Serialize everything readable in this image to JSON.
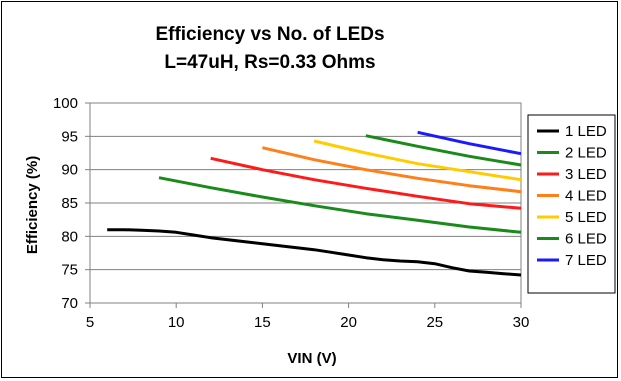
{
  "chart_data": {
    "type": "line",
    "title": "Efficiency vs No. of LEDs",
    "subtitle": "L=47uH, Rs=0.33 Ohms",
    "xlabel": "VIN (V)",
    "ylabel": "Efficiency (%)",
    "xlim": [
      5,
      30
    ],
    "ylim": [
      70,
      100
    ],
    "xticks": [
      "5",
      "10",
      "15",
      "20",
      "25",
      "30"
    ],
    "yticks": [
      "70",
      "75",
      "80",
      "85",
      "90",
      "95",
      "100"
    ],
    "grid": "horizontal",
    "legend_position": "right",
    "series": [
      {
        "name": "1 LED",
        "color": "#000000",
        "x": [
          6,
          7,
          8,
          9,
          10,
          11,
          12,
          13,
          14,
          15,
          16,
          17,
          18,
          19,
          20,
          21,
          22,
          23,
          24,
          25,
          26,
          27,
          28,
          29,
          30
        ],
        "y": [
          81.0,
          81.0,
          80.9,
          80.8,
          80.6,
          80.2,
          79.8,
          79.5,
          79.2,
          78.9,
          78.6,
          78.3,
          78.0,
          77.6,
          77.2,
          76.8,
          76.5,
          76.3,
          76.2,
          75.9,
          75.3,
          74.8,
          74.6,
          74.4,
          74.2
        ]
      },
      {
        "name": "2 LED",
        "color": "#1a8a1a",
        "x": [
          9,
          12,
          15,
          18,
          21,
          24,
          27,
          30
        ],
        "y": [
          88.8,
          87.3,
          85.9,
          84.6,
          83.4,
          82.4,
          81.4,
          80.6
        ]
      },
      {
        "name": "3 LED",
        "color": "#ff1a1a",
        "x": [
          12,
          15,
          18,
          21,
          24,
          27,
          30
        ],
        "y": [
          91.7,
          90.0,
          88.5,
          87.2,
          86.0,
          84.9,
          84.2
        ]
      },
      {
        "name": "4 LED",
        "color": "#ff7f1a",
        "x": [
          15,
          18,
          21,
          24,
          27,
          30
        ],
        "y": [
          93.3,
          91.5,
          90.0,
          88.7,
          87.6,
          86.7
        ]
      },
      {
        "name": "5 LED",
        "color": "#ffcc00",
        "x": [
          18,
          21,
          24,
          27,
          30
        ],
        "y": [
          94.3,
          92.5,
          90.9,
          89.7,
          88.5
        ]
      },
      {
        "name": "6 LED",
        "color": "#1a8a1a",
        "x": [
          21,
          24,
          27,
          30
        ],
        "y": [
          95.1,
          93.5,
          92.0,
          90.7
        ]
      },
      {
        "name": "7 LED",
        "color": "#1a1aff",
        "x": [
          24,
          27,
          30
        ],
        "y": [
          95.6,
          93.9,
          92.4
        ]
      }
    ]
  }
}
